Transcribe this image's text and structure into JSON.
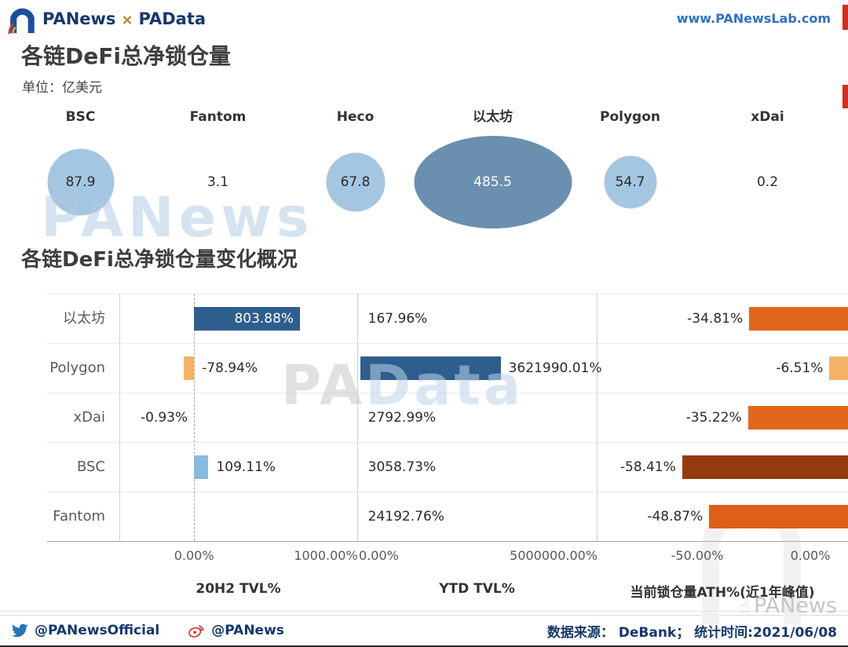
{
  "header": {
    "brand_left": "PANews",
    "brand_sep": "×",
    "brand_right": "PAData",
    "site_url": "www.PANewsLab.com"
  },
  "section1": {
    "title": "各链DeFi总净锁仓量",
    "unit": "单位：亿美元"
  },
  "section2": {
    "title": "各链DeFi总净锁仓量变化概况"
  },
  "watermarks": {
    "bubble_area": "PANews",
    "bar_area_left": "PA",
    "bar_area_right": "Data",
    "corner": "PANews",
    "corner_icon": "☝"
  },
  "footer": {
    "twitter_handle": "@PANewsOfficial",
    "weibo_handle": "@PANews",
    "source_note": "数据来源： DeBank； 统计时间:2021/06/08"
  },
  "chart_data": [
    {
      "type": "bubble",
      "title": "各链DeFi总净锁仓量",
      "unit": "亿美元",
      "categories": [
        "BSC",
        "Fantom",
        "Heco",
        "以太坊",
        "Polygon",
        "xDai"
      ],
      "values": [
        87.9,
        3.1,
        67.8,
        485.5,
        54.7,
        0.2
      ],
      "colors": {
        "small": "#a5c6e1",
        "large": "#6b8fae"
      }
    },
    {
      "type": "bar",
      "orientation": "horizontal",
      "title": "各链DeFi总净锁仓量变化概况",
      "categories": [
        "以太坊",
        "Polygon",
        "xDai",
        "BSC",
        "Fantom"
      ],
      "series": [
        {
          "name": "20H2 TVL%",
          "values": [
            803.88,
            -78.94,
            -0.93,
            109.11,
            null
          ],
          "labels": [
            "803.88%",
            "-78.94%",
            "-0.93%",
            "109.11%",
            ""
          ],
          "colors": [
            "#2e5e8e",
            "#f5b264",
            "#f5b264",
            "#85bcdc",
            null
          ],
          "ticks": [
            "0.00%",
            "1000.00%"
          ],
          "axis_range": [
            -570,
            1240
          ]
        },
        {
          "name": "YTD TVL%",
          "values": [
            167.96,
            3621990.01,
            2792.99,
            3058.73,
            24192.76
          ],
          "labels": [
            "167.96%",
            "3621990.01%",
            "2792.99%",
            "3058.73%",
            "24192.76%"
          ],
          "colors": [
            "#2e5e8e",
            "#2e5e8e",
            "#2e5e8e",
            "#2e5e8e",
            "#2e5e8e"
          ],
          "ticks": [
            "0.00%",
            "5000000.00%"
          ],
          "axis_range": [
            0,
            6100000
          ]
        },
        {
          "name": "当前锁仓量ATH%(近1年峰值)",
          "values": [
            -34.81,
            -6.51,
            -35.22,
            -58.41,
            -48.87
          ],
          "labels": [
            "-34.81%",
            "-6.51%",
            "-35.22%",
            "-58.41%",
            "-48.87%"
          ],
          "colors": [
            "#e2661c",
            "#f6b168",
            "#e2661c",
            "#963a10",
            "#de5f17"
          ],
          "ticks": [
            "-50.00%",
            "0.00%"
          ],
          "axis_range": [
            -88,
            0
          ]
        }
      ]
    }
  ]
}
